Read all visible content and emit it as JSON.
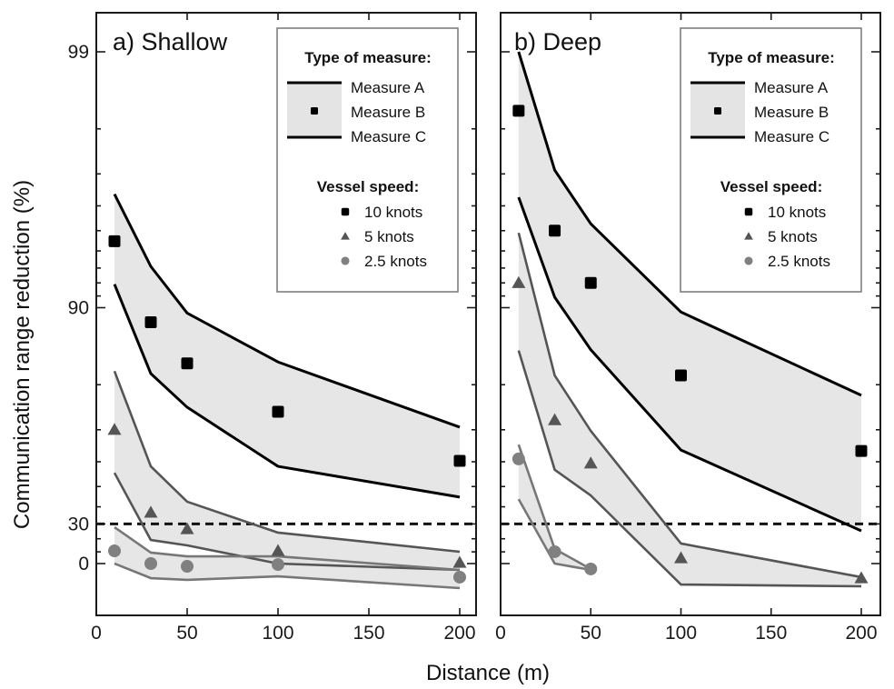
{
  "chart_data": {
    "type": "line",
    "ylabel": "Communication range reduction (%)",
    "xlabel": "Distance (m)",
    "y_scale": "log(100 - y)",
    "y_ticks": [
      99,
      90,
      30,
      0
    ],
    "y_minor_ticks": [
      99.7,
      99.5,
      98,
      97,
      96,
      95,
      94,
      93,
      92,
      91,
      80,
      70,
      60,
      50,
      40,
      20,
      10
    ],
    "ylim": [
      -58,
      99.8
    ],
    "x_ticks": [
      0,
      50,
      100,
      150,
      200
    ],
    "xlim": [
      0,
      212
    ],
    "threshold": {
      "value": 30,
      "style": "dashed"
    },
    "legend": {
      "measure_title": "Type of measure:",
      "measures": [
        "Measure A",
        "Measure B",
        "Measure C"
      ],
      "speed_title": "Vessel speed:",
      "speeds": [
        "10 knots",
        "5 knots",
        "2.5 knots"
      ],
      "placement": "top-right"
    },
    "panels": [
      {
        "title": "a) Shallow",
        "series": [
          {
            "name": "10 knots",
            "marker": "square",
            "color": "#000000",
            "x": [
              10,
              30,
              50,
              100,
              200
            ],
            "measure_a": [
              96.4,
              93.1,
              89.5,
              83.7,
              70.7
            ],
            "measure_b": [
              94.5,
              88.6,
              83.5,
              74.5,
              60.3
            ],
            "measure_c": [
              91.9,
              81.9,
              75.5,
              58.3,
              45.0
            ]
          },
          {
            "name": "5 knots",
            "marker": "triangle",
            "color": "#555555",
            "x": [
              10,
              30,
              50,
              100,
              200
            ],
            "measure_a": [
              82.3,
              58.3,
              42.7,
              24.3,
              10.1
            ],
            "measure_b": [
              70.0,
              36.8,
              26.7,
              10.8,
              0.8
            ],
            "measure_c": [
              55.8,
              19.1,
              15.1,
              0.0,
              -5.9
            ]
          },
          {
            "name": "2.5 knots",
            "marker": "circle",
            "color": "#808080",
            "x": [
              10,
              30,
              50,
              100,
              200
            ],
            "measure_a": [
              27.9,
              9.4,
              6.3,
              6.3,
              -5.9
            ],
            "measure_b": [
              10.8,
              0.0,
              -2.5,
              -0.9,
              -13.0
            ],
            "measure_c": [
              0.0,
              -14.0,
              -15.8,
              -12.2,
              -24.7
            ]
          }
        ]
      },
      {
        "title": "b) Deep",
        "series": [
          {
            "name": "10 knots",
            "marker": "square",
            "color": "#000000",
            "x": [
              10,
              30,
              50,
              100,
              200
            ],
            "measure_a": [
              99.0,
              97.1,
              95.3,
              89.6,
              78.0
            ],
            "measure_b": [
              98.3,
              95.0,
              92.0,
              81.6,
              63.7
            ],
            "measure_c": [
              96.3,
              90.9,
              85.4,
              64.0,
              25.5
            ]
          },
          {
            "name": "5 knots",
            "marker": "triangle",
            "color": "#555555",
            "x": [
              10,
              30,
              50,
              100,
              200
            ],
            "measure_a": [
              94.9,
              81.6,
              69.7,
              16.5,
              -13.0
            ],
            "measure_b": [
              92.0,
              72.5,
              59.4,
              4.8,
              -14.0
            ],
            "measure_c": [
              85.3,
              57.0,
              45.8,
              -20.8,
              -22.7
            ]
          },
          {
            "name": "2.5 knots",
            "marker": "circle",
            "color": "#808080",
            "x": [
              10,
              30,
              50
            ],
            "measure_a": [
              65.7,
              12.3,
              -5.0
            ],
            "measure_b": [
              61.0,
              10.1,
              -5.0
            ],
            "measure_c": [
              44.0,
              0.0,
              -5.9
            ]
          }
        ]
      }
    ]
  }
}
